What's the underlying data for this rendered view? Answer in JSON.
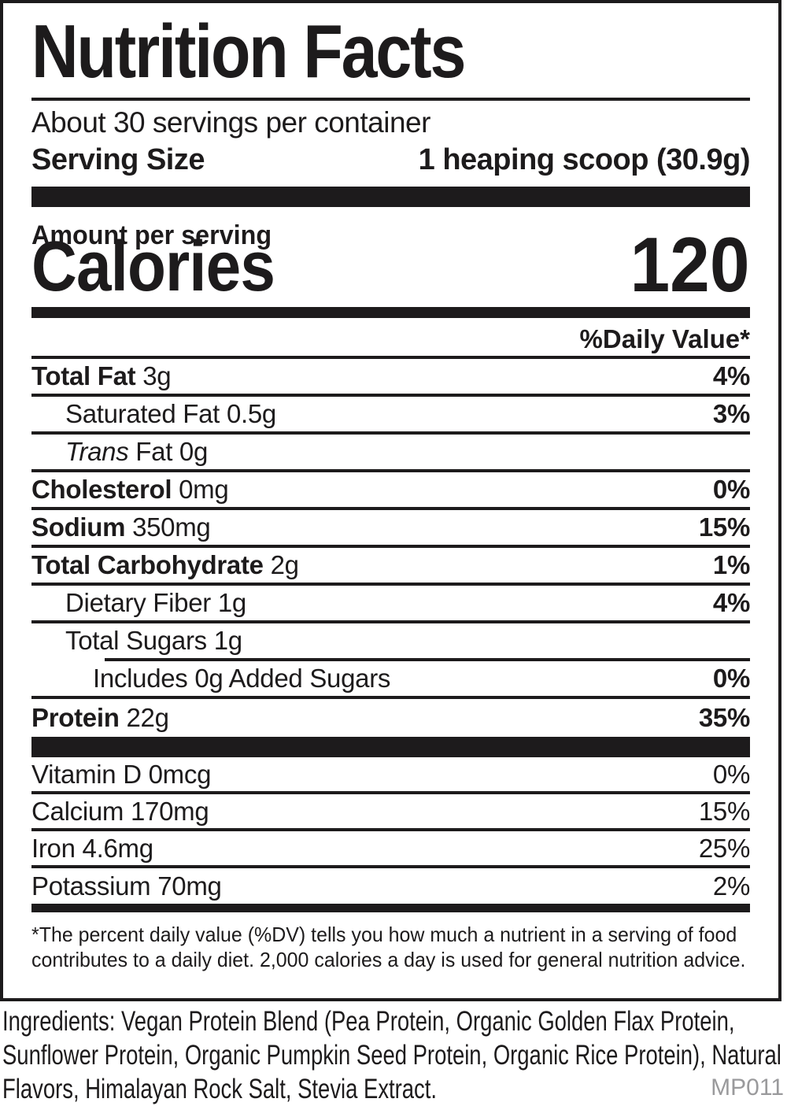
{
  "colors": {
    "ink": "#1d1b1c",
    "code_gray": "#9a9a9c"
  },
  "label": {
    "title": "Nutrition Facts",
    "servings_per_container": "About 30 servings per container",
    "serving_size": {
      "label": "Serving Size",
      "value": "1 heaping scoop (30.9g)"
    },
    "amount_per_serving_label": "Amount per serving",
    "calories": {
      "label": "Calories",
      "value": "120"
    },
    "daily_value_header": "%Daily Value*",
    "nutrients": [
      {
        "name": "Total Fat",
        "amount": "3g",
        "dv": "4%"
      },
      {
        "name": "Saturated Fat",
        "amount": "0.5g",
        "dv": "3%"
      },
      {
        "name": "Trans",
        "amount": "Fat 0g",
        "dv": ""
      },
      {
        "name": "Cholesterol",
        "amount": "0mg",
        "dv": "0%"
      },
      {
        "name": "Sodium",
        "amount": "350mg",
        "dv": "15%"
      },
      {
        "name": "Total Carbohydrate",
        "amount": "2g",
        "dv": "1%"
      },
      {
        "name": "Dietary Fiber",
        "amount": "1g",
        "dv": "4%"
      },
      {
        "name": "Total Sugars",
        "amount": "1g",
        "dv": ""
      },
      {
        "name": "Includes 0g Added Sugars",
        "amount": "",
        "dv": "0%"
      },
      {
        "name": "Protein",
        "amount": "22g",
        "dv": "35%"
      }
    ],
    "vitamins": [
      {
        "name": "Vitamin D",
        "amount": "0mcg",
        "dv": "0%"
      },
      {
        "name": "Calcium",
        "amount": "170mg",
        "dv": "15%"
      },
      {
        "name": "Iron",
        "amount": "4.6mg",
        "dv": "25%"
      },
      {
        "name": "Potassium",
        "amount": "70mg",
        "dv": "2%"
      }
    ],
    "footnote_lines": [
      "*The percent daily value (%DV) tells you how much a nutrient in a serving of food",
      "contributes to a daily diet. 2,000 calories a day is used for general nutrition advice."
    ]
  },
  "ingredients_lines": [
    "Ingredients: Vegan Protein Blend (Pea Protein, Organic Golden Flax Protein,",
    "Sunflower Protein, Organic Pumpkin Seed Protein, Organic Rice Protein), Natural",
    "Flavors, Himalayan Rock Salt, Stevia Extract."
  ],
  "product_code": "MP011"
}
